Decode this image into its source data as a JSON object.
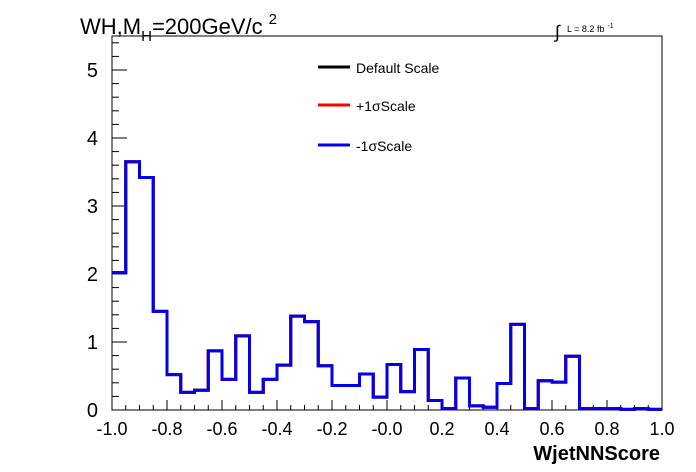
{
  "chart_data": {
    "type": "line",
    "title": "WH,M",
    "title_subscript": "H",
    "title_rest": "=200GeV/c",
    "title_superscript": "2",
    "lumi_integral_symbol": "∫",
    "lumi_text": "L = 8.2 fb",
    "lumi_superscript": "-1",
    "xlabel": "WjetNNScore",
    "ylabel": "",
    "xlim": [
      -1.0,
      1.0
    ],
    "ylim": [
      0,
      5.5
    ],
    "x_ticks": [
      -1.0,
      -0.8,
      -0.6,
      -0.4,
      -0.2,
      0.0,
      0.2,
      0.4,
      0.6,
      0.8,
      1.0
    ],
    "x_tick_labels": [
      "-1.0",
      "-0.8",
      "-0.6",
      "-0.4",
      "-0.2",
      "-0.0",
      "0.2",
      "0.4",
      "0.6",
      "0.8",
      "1.0"
    ],
    "y_ticks": [
      0,
      1,
      2,
      3,
      4,
      5
    ],
    "y_tick_labels": [
      "0",
      "1",
      "2",
      "3",
      "4",
      "5"
    ],
    "grid": false,
    "legend_placement": "top-center",
    "bin_edges": [
      -1.0,
      -0.95,
      -0.9,
      -0.85,
      -0.8,
      -0.75,
      -0.7,
      -0.65,
      -0.6,
      -0.55,
      -0.5,
      -0.45,
      -0.4,
      -0.35,
      -0.3,
      -0.25,
      -0.2,
      -0.15,
      -0.1,
      -0.05,
      0.0,
      0.05,
      0.1,
      0.15,
      0.2,
      0.25,
      0.3,
      0.35,
      0.4,
      0.45,
      0.5,
      0.55,
      0.6,
      0.65,
      0.7,
      0.75,
      0.8,
      0.85,
      0.9,
      0.95,
      1.0
    ],
    "series": [
      {
        "name": "Default Scale",
        "color": "#000000",
        "values": [
          2.02,
          3.65,
          3.42,
          1.45,
          0.52,
          0.26,
          0.29,
          0.87,
          0.45,
          1.09,
          0.26,
          0.45,
          0.66,
          1.38,
          1.3,
          0.65,
          0.36,
          0.36,
          0.53,
          0.19,
          0.67,
          0.27,
          0.89,
          0.14,
          0.02,
          0.47,
          0.06,
          0.04,
          0.39,
          1.26,
          0.02,
          0.43,
          0.41,
          0.79,
          0.02,
          0.02,
          0.02,
          0.01,
          0.02,
          0.01
        ]
      },
      {
        "name": "+1σScale",
        "color": "#ff0000",
        "values": [
          2.02,
          3.65,
          3.42,
          1.45,
          0.52,
          0.26,
          0.29,
          0.87,
          0.45,
          1.09,
          0.26,
          0.45,
          0.66,
          1.38,
          1.3,
          0.65,
          0.36,
          0.36,
          0.53,
          0.19,
          0.67,
          0.27,
          0.89,
          0.14,
          0.02,
          0.47,
          0.06,
          0.04,
          0.39,
          1.26,
          0.02,
          0.43,
          0.41,
          0.79,
          0.02,
          0.02,
          0.02,
          0.01,
          0.02,
          0.01
        ]
      },
      {
        "name": "-1σScale",
        "color": "#0000ee",
        "values": [
          2.02,
          3.65,
          3.42,
          1.45,
          0.52,
          0.26,
          0.29,
          0.87,
          0.45,
          1.09,
          0.26,
          0.45,
          0.66,
          1.38,
          1.3,
          0.65,
          0.36,
          0.36,
          0.53,
          0.19,
          0.67,
          0.27,
          0.89,
          0.14,
          0.02,
          0.47,
          0.06,
          0.04,
          0.39,
          1.26,
          0.02,
          0.43,
          0.41,
          0.79,
          0.02,
          0.02,
          0.02,
          0.01,
          0.02,
          0.01
        ]
      }
    ]
  }
}
